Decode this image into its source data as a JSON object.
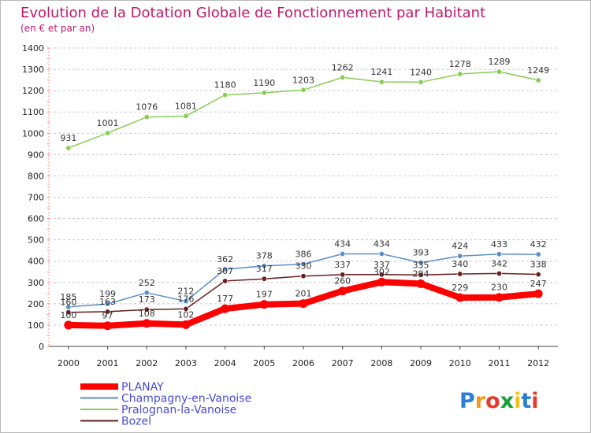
{
  "chart_data": {
    "type": "line",
    "title": "Evolution de la Dotation Globale de Fonctionnement par Habitant",
    "subtitle": "(en € et par an)",
    "x": [
      "2000",
      "2001",
      "2002",
      "2003",
      "2004",
      "2005",
      "2006",
      "2007",
      "2008",
      "2009",
      "2010",
      "2011",
      "2012"
    ],
    "ylim": [
      0,
      1400
    ],
    "yticks": [
      0,
      100,
      200,
      300,
      400,
      500,
      600,
      700,
      800,
      900,
      1000,
      1100,
      1200,
      1300,
      1400
    ],
    "grid": "horizontal dashed",
    "legend_position": "bottom-left",
    "series": [
      {
        "name": "PLANAY",
        "color": "#ff0000",
        "values": [
          100,
          97,
          108,
          102,
          177,
          197,
          201,
          260,
          302,
          294,
          229,
          230,
          247
        ]
      },
      {
        "name": "Champagny-en-Vanoise",
        "color": "#5b8fc6",
        "values": [
          185,
          199,
          252,
          212,
          362,
          378,
          386,
          434,
          434,
          393,
          424,
          433,
          432
        ]
      },
      {
        "name": "Pralognan-la-Vanoise",
        "color": "#88cc55",
        "values": [
          931,
          1001,
          1076,
          1081,
          1180,
          1190,
          1203,
          1262,
          1241,
          1240,
          1278,
          1289,
          1249
        ]
      },
      {
        "name": "Bozel",
        "color": "#6b1e1e",
        "values": [
          160,
          163,
          173,
          176,
          307,
          317,
          330,
          337,
          337,
          335,
          340,
          342,
          338
        ]
      }
    ]
  },
  "logo": {
    "text": "Proxiti"
  }
}
